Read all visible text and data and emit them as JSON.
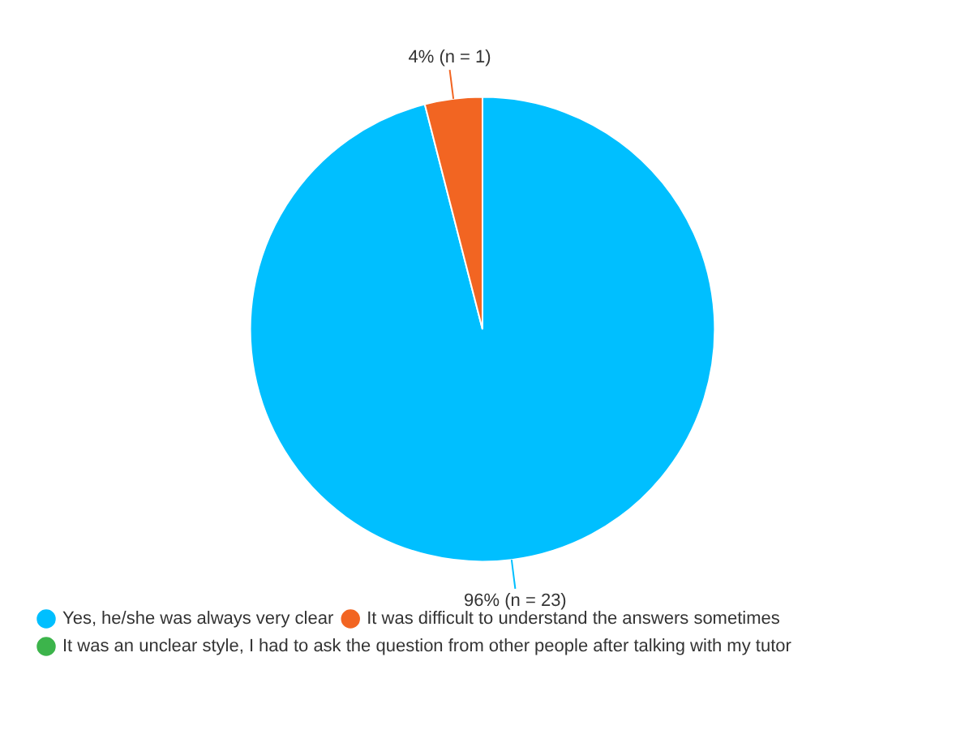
{
  "chart_data": {
    "type": "pie",
    "categories": [
      "Yes, he/she was always very clear",
      "It was difficult to understand the answers sometimes",
      "It was an unclear style, I had to ask the question from other people after talking with my tutor"
    ],
    "values": [
      96,
      4,
      0
    ],
    "colors": [
      "#00bfff",
      "#f26522",
      "#3cb44b"
    ],
    "value_labels": [
      "96% (n = 23)",
      "4% (n = 1)",
      null
    ],
    "legend": "bottom left"
  }
}
